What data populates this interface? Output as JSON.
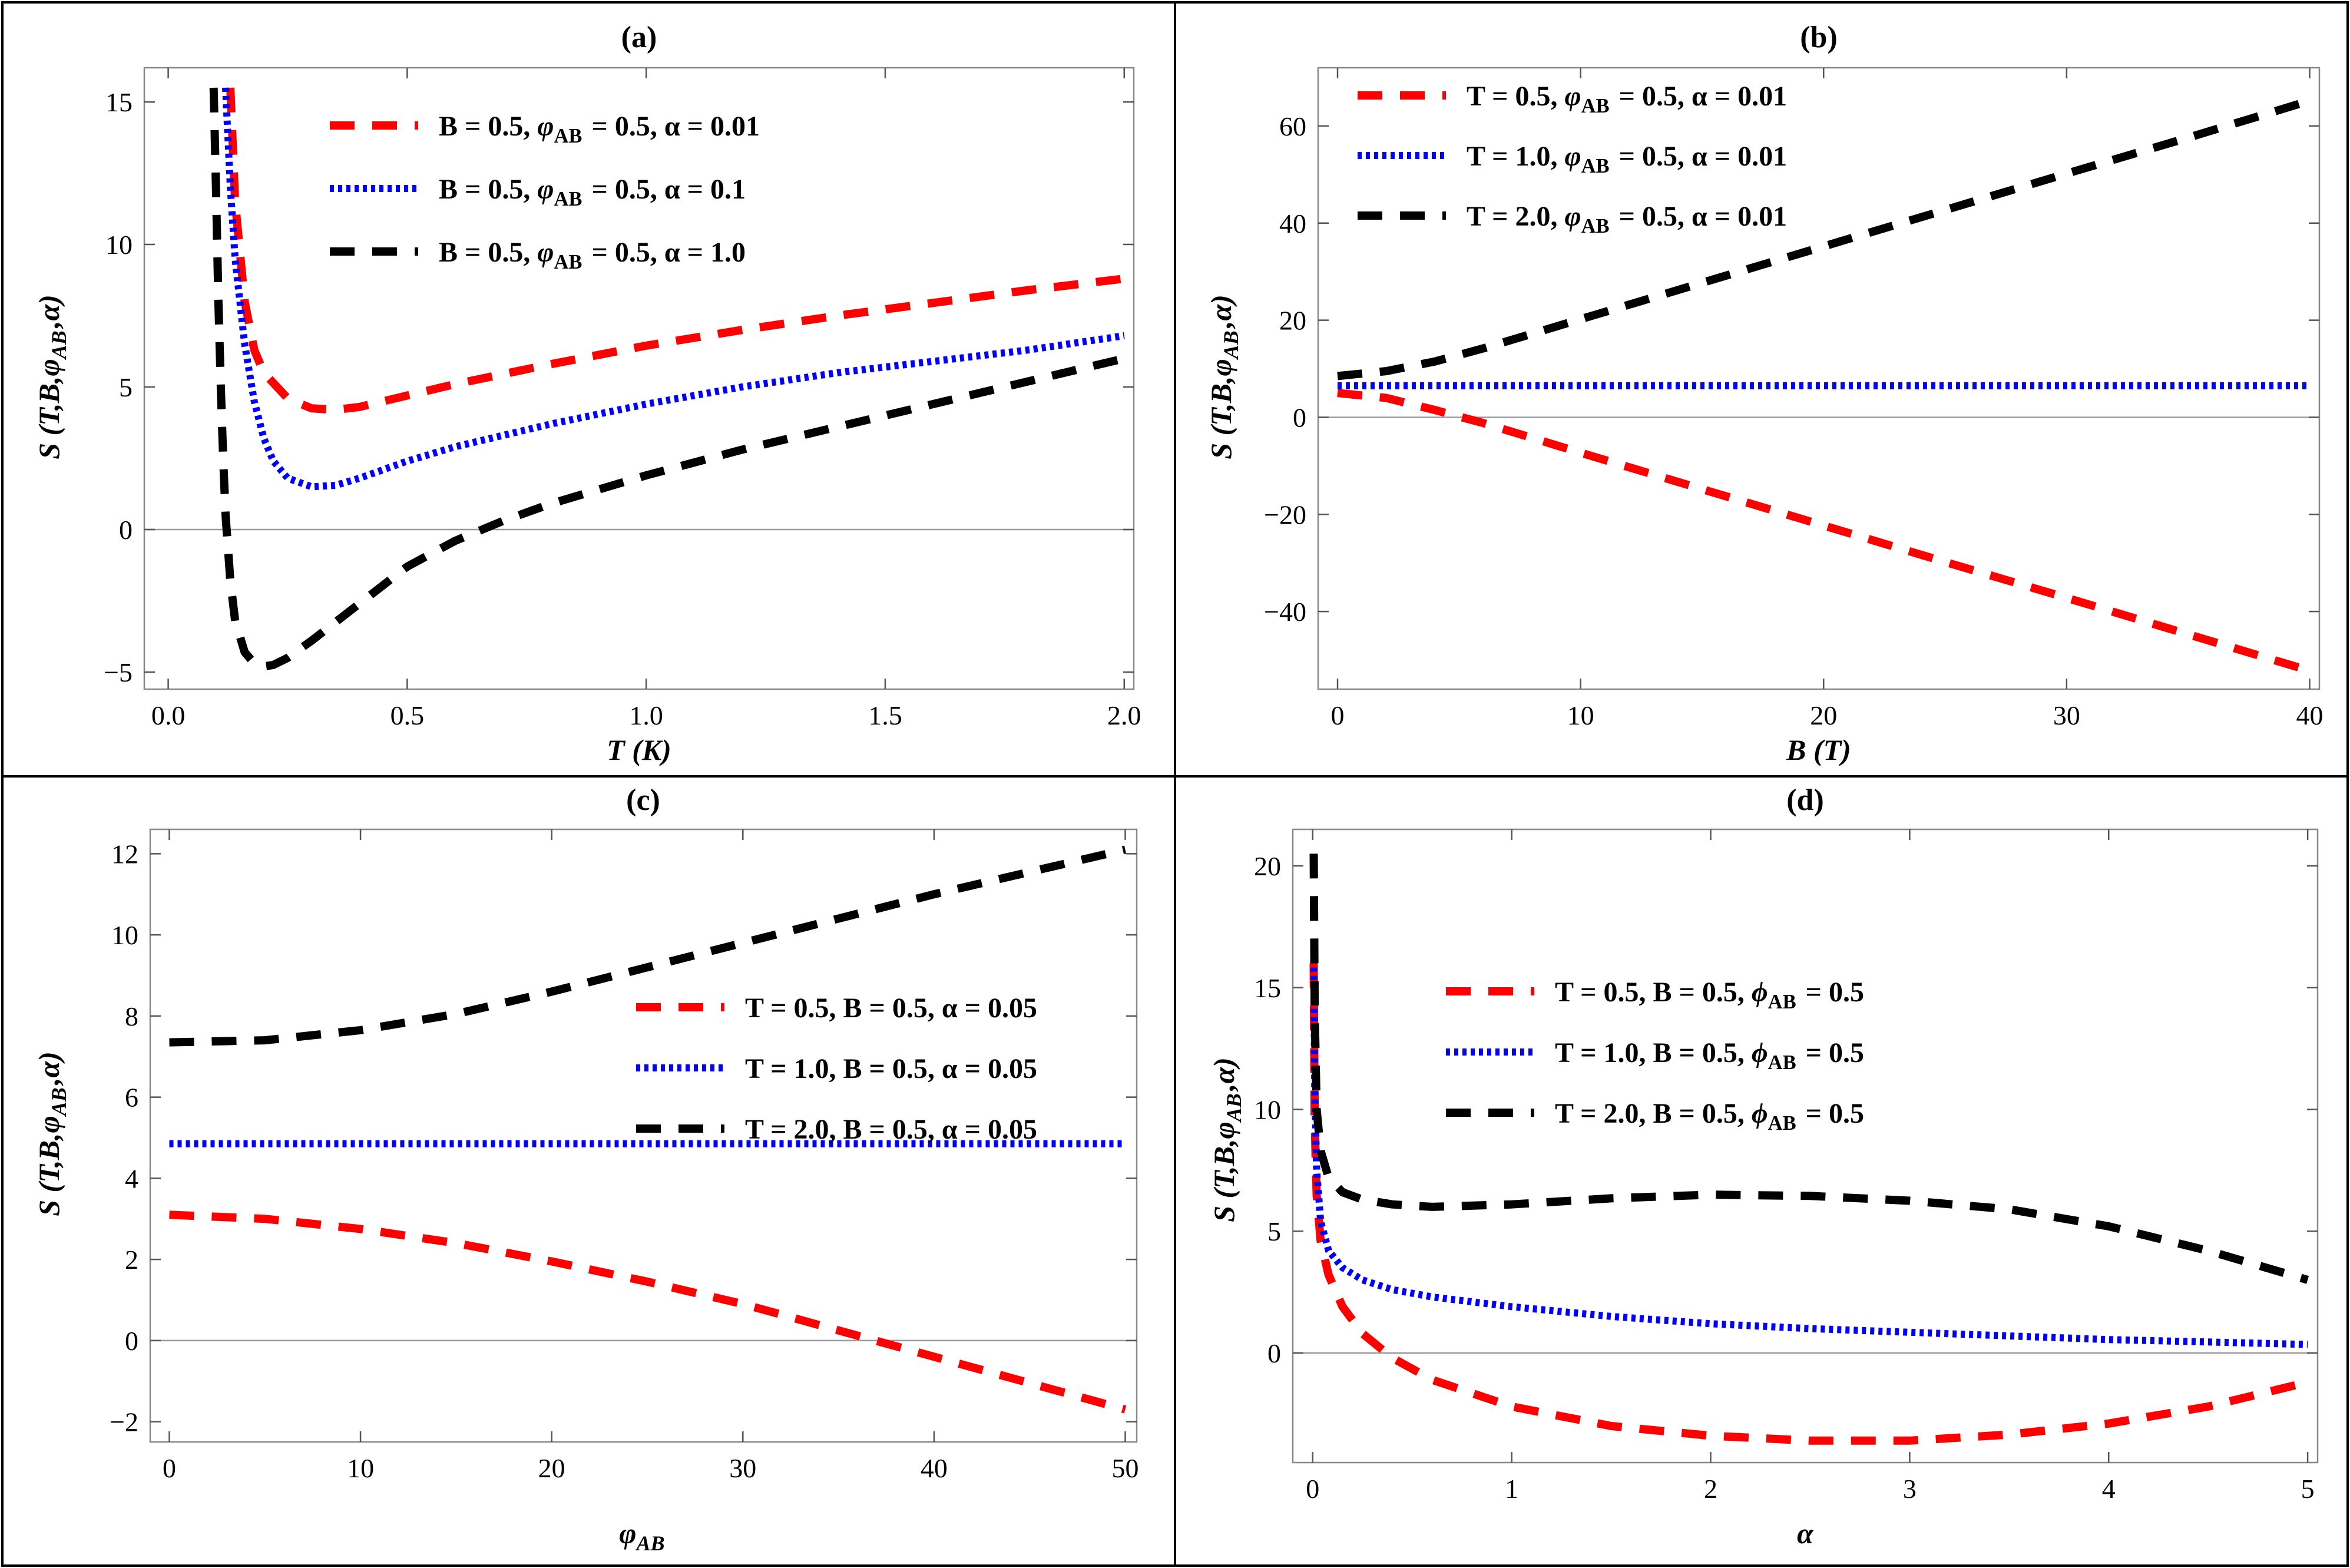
{
  "chart_data": [
    {
      "id": "a",
      "type": "line",
      "title": "(a)",
      "xlabel": "T (K)",
      "ylabel": "S (T,B,φAB,α)",
      "xlim": [
        -0.05,
        2.02
      ],
      "ylim": [
        -5.6,
        16.2
      ],
      "xticks": [
        0.0,
        0.5,
        1.0,
        1.5,
        2.0
      ],
      "xtick_labels": [
        "0.0",
        "0.5",
        "1.0",
        "1.5",
        "2.0"
      ],
      "yticks": [
        -5,
        0,
        5,
        10,
        15
      ],
      "ytick_labels": [
        "−5",
        "0",
        "5",
        "10",
        "15"
      ],
      "legend_position": "top-center",
      "series": [
        {
          "name": "B = 0.5, φAB = 0.5, α = 0.01",
          "color": "#ff0000",
          "style": "dashed",
          "x": [
            0.13,
            0.14,
            0.16,
            0.18,
            0.2,
            0.25,
            0.3,
            0.35,
            0.4,
            0.5,
            0.6,
            0.8,
            1.0,
            1.2,
            1.4,
            1.6,
            1.8,
            2.0
          ],
          "y": [
            15.5,
            11.5,
            8.0,
            6.3,
            5.5,
            4.6,
            4.25,
            4.2,
            4.3,
            4.7,
            5.1,
            5.8,
            6.45,
            7.0,
            7.5,
            7.95,
            8.4,
            8.8
          ]
        },
        {
          "name": "B = 0.5, φAB = 0.5, α = 0.1",
          "color": "#0000ff",
          "style": "dotted",
          "x": [
            0.12,
            0.13,
            0.14,
            0.16,
            0.18,
            0.2,
            0.22,
            0.25,
            0.3,
            0.35,
            0.4,
            0.5,
            0.6,
            0.8,
            1.0,
            1.2,
            1.4,
            1.6,
            1.8,
            2.0
          ],
          "y": [
            15.5,
            12.0,
            9.5,
            6.5,
            4.5,
            3.2,
            2.4,
            1.8,
            1.5,
            1.55,
            1.8,
            2.4,
            2.9,
            3.7,
            4.4,
            5.0,
            5.5,
            5.9,
            6.3,
            6.8
          ]
        },
        {
          "name": "B = 0.5, φAB = 0.5, α = 1.0",
          "color": "#000000",
          "style": "dashed",
          "x": [
            0.095,
            0.1,
            0.105,
            0.11,
            0.115,
            0.12,
            0.13,
            0.14,
            0.16,
            0.18,
            0.2,
            0.22,
            0.25,
            0.3,
            0.4,
            0.5,
            0.6,
            0.7,
            0.8,
            1.0,
            1.2,
            1.4,
            1.6,
            1.8,
            2.0
          ],
          "y": [
            15.5,
            12.0,
            8.0,
            5.0,
            2.5,
            0.5,
            -1.8,
            -3.2,
            -4.3,
            -4.7,
            -4.8,
            -4.75,
            -4.5,
            -3.9,
            -2.6,
            -1.3,
            -0.4,
            0.3,
            0.9,
            1.9,
            2.8,
            3.6,
            4.4,
            5.2,
            6.0
          ]
        }
      ]
    },
    {
      "id": "b",
      "type": "line",
      "title": "(b)",
      "xlabel": "B (T)",
      "ylabel": "S (T,B,φAB,α)",
      "xlim": [
        -0.8,
        40.4
      ],
      "ylim": [
        -56,
        72
      ],
      "xticks": [
        0,
        10,
        20,
        30,
        40
      ],
      "xtick_labels": [
        "0",
        "10",
        "20",
        "30",
        "40"
      ],
      "yticks": [
        -40,
        -20,
        0,
        20,
        40,
        60
      ],
      "ytick_labels": [
        "−40",
        "−20",
        "0",
        "20",
        "40",
        "60"
      ],
      "legend_position": "top-left",
      "series": [
        {
          "name": "T = 0.5, φAB = 0.5, α = 0.01",
          "color": "#ff0000",
          "style": "dashed",
          "x": [
            0,
            2,
            4,
            6,
            10,
            15,
            20,
            25,
            30,
            35,
            40
          ],
          "y": [
            5.0,
            4.0,
            1.5,
            -1.2,
            -7.3,
            -14.8,
            -22.3,
            -29.8,
            -37.2,
            -44.7,
            -52.2
          ]
        },
        {
          "name": "T = 1.0, φAB = 0.5, α = 0.01",
          "color": "#0000ff",
          "style": "dotted",
          "x": [
            0,
            40
          ],
          "y": [
            6.5,
            6.5
          ]
        },
        {
          "name": "T = 2.0, φAB = 0.5, α = 0.01",
          "color": "#000000",
          "style": "dashed",
          "x": [
            0,
            2,
            4,
            6,
            10,
            15,
            20,
            25,
            30,
            35,
            40
          ],
          "y": [
            8.5,
            9.5,
            11.5,
            14.2,
            20.2,
            27.7,
            35.2,
            42.7,
            50.2,
            57.6,
            65.2
          ]
        }
      ]
    },
    {
      "id": "c",
      "type": "line",
      "title": "(c)",
      "xlabel": "φAB",
      "ylabel": "S (T,B,φAB,α)",
      "xlim": [
        -1,
        50.6
      ],
      "ylim": [
        -2.5,
        12.6
      ],
      "xticks": [
        0,
        10,
        20,
        30,
        40,
        50
      ],
      "xtick_labels": [
        "0",
        "10",
        "20",
        "30",
        "40",
        "50"
      ],
      "yticks": [
        -2,
        0,
        2,
        4,
        6,
        8,
        10,
        12
      ],
      "ytick_labels": [
        "−2",
        "0",
        "2",
        "4",
        "6",
        "8",
        "10",
        "12"
      ],
      "legend_position": "center-right",
      "series": [
        {
          "name": "T = 0.5, B = 0.5, α = 0.05",
          "color": "#ff0000",
          "style": "dashed",
          "x": [
            0,
            5,
            10,
            15,
            20,
            25,
            30,
            35,
            40,
            45,
            50
          ],
          "y": [
            3.1,
            3.0,
            2.75,
            2.4,
            1.95,
            1.45,
            0.9,
            0.25,
            -0.4,
            -1.05,
            -1.7
          ]
        },
        {
          "name": "T = 1.0, B = 0.5, α = 0.05",
          "color": "#0000ff",
          "style": "dotted",
          "x": [
            0,
            50
          ],
          "y": [
            4.85,
            4.85
          ]
        },
        {
          "name": "T = 2.0, B = 0.5, α = 0.05",
          "color": "#000000",
          "style": "dashed",
          "x": [
            0,
            5,
            10,
            15,
            20,
            25,
            30,
            35,
            40,
            45,
            50
          ],
          "y": [
            7.35,
            7.4,
            7.65,
            8.05,
            8.6,
            9.2,
            9.8,
            10.4,
            11.0,
            11.55,
            12.1
          ]
        }
      ]
    },
    {
      "id": "d",
      "type": "line",
      "title": "(d)",
      "xlabel": "α",
      "ylabel": "S (T,B,φAB,α)",
      "xlim": [
        -0.1,
        5.05
      ],
      "ylim": [
        -4.5,
        21.5
      ],
      "xticks": [
        0,
        1,
        2,
        3,
        4,
        5
      ],
      "xtick_labels": [
        "0",
        "1",
        "2",
        "3",
        "4",
        "5"
      ],
      "yticks": [
        0,
        5,
        10,
        15,
        20
      ],
      "ytick_labels": [
        "0",
        "5",
        "10",
        "15",
        "20"
      ],
      "legend_position": "top-center",
      "series": [
        {
          "name": "T = 0.5, B = 0.5, ϕAB = 0.5",
          "color": "#ff0000",
          "style": "dashed",
          "x": [
            0.005,
            0.01,
            0.02,
            0.04,
            0.08,
            0.15,
            0.25,
            0.4,
            0.6,
            1.0,
            1.5,
            2.0,
            2.5,
            3.0,
            3.5,
            4.0,
            4.5,
            5.0
          ],
          "y": [
            16.0,
            9.5,
            6.5,
            4.6,
            3.2,
            1.9,
            0.8,
            -0.2,
            -1.1,
            -2.2,
            -3.0,
            -3.4,
            -3.6,
            -3.6,
            -3.35,
            -2.9,
            -2.2,
            -1.2
          ]
        },
        {
          "name": "T = 1.0, B = 0.5, ϕAB = 0.5",
          "color": "#0000ff",
          "style": "dotted",
          "x": [
            0.005,
            0.01,
            0.02,
            0.04,
            0.08,
            0.15,
            0.25,
            0.4,
            0.6,
            1.0,
            1.5,
            2.0,
            2.5,
            3.0,
            3.5,
            4.0,
            4.5,
            5.0
          ],
          "y": [
            16.5,
            11.0,
            7.5,
            5.4,
            4.2,
            3.5,
            3.0,
            2.6,
            2.3,
            1.9,
            1.5,
            1.2,
            1.0,
            0.85,
            0.7,
            0.55,
            0.45,
            0.35
          ]
        },
        {
          "name": "T = 2.0, B = 0.5, ϕAB = 0.5",
          "color": "#000000",
          "style": "dashed",
          "x": [
            0.005,
            0.01,
            0.02,
            0.04,
            0.08,
            0.15,
            0.25,
            0.4,
            0.6,
            1.0,
            1.5,
            2.0,
            2.5,
            3.0,
            3.5,
            4.0,
            4.5,
            5.0
          ],
          "y": [
            20.5,
            14.0,
            10.0,
            8.3,
            7.2,
            6.6,
            6.3,
            6.1,
            6.0,
            6.1,
            6.35,
            6.5,
            6.45,
            6.25,
            5.9,
            5.2,
            4.2,
            3.0
          ]
        }
      ]
    }
  ]
}
